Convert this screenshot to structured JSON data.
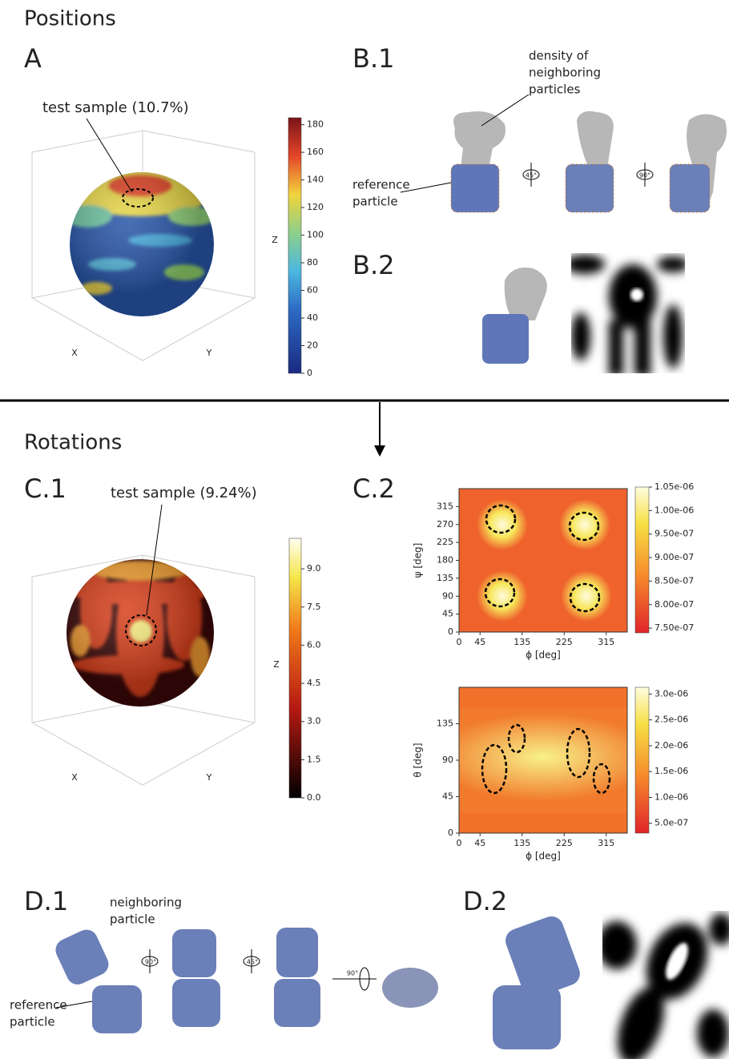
{
  "sections": {
    "positions": "Positions",
    "rotations": "Rotations"
  },
  "panel_A": {
    "label": "A",
    "annotation": "test sample (10.7%)",
    "axes": {
      "x": "X",
      "y": "Y",
      "z": "Z"
    },
    "colorbar": {
      "lim": [
        0,
        185
      ],
      "ticks": [
        0,
        20,
        40,
        60,
        80,
        100,
        120,
        140,
        160,
        180
      ]
    }
  },
  "panel_B1": {
    "label": "B.1",
    "density_label": [
      "density of",
      "neighboring",
      "particles"
    ],
    "reference_label": [
      "reference",
      "particle"
    ],
    "rotations": [
      "45°",
      "90°"
    ]
  },
  "panel_B2": {
    "label": "B.2"
  },
  "panel_C1": {
    "label": "C.1",
    "annotation": "test sample (9.24%)",
    "axes": {
      "x": "X",
      "y": "Y",
      "z": "Z"
    },
    "colorbar": {
      "lim": [
        0,
        10.2
      ],
      "ticks": [
        {
          "value": 0,
          "label": "0.0"
        },
        {
          "value": 1.5,
          "label": "1.5"
        },
        {
          "value": 3,
          "label": "3.0"
        },
        {
          "value": 4.5,
          "label": "4.5"
        },
        {
          "value": 6,
          "label": "6.0"
        },
        {
          "value": 7.5,
          "label": "7.5"
        },
        {
          "value": 9,
          "label": "9.0"
        }
      ]
    }
  },
  "panel_C2": {
    "label": "C.2",
    "plots": [
      {
        "xlabel": "ϕ [deg]",
        "ylabel": "ψ [deg]",
        "xlim": [
          0,
          360
        ],
        "xticks": [
          0,
          45,
          135,
          225,
          315
        ],
        "ylim": [
          0,
          360
        ],
        "yticks": [
          0,
          45,
          90,
          135,
          180,
          225,
          270,
          315
        ],
        "colorbar": {
          "lim": [
            7.4e-07,
            1.05e-06
          ],
          "ticks": [
            {
              "value": 7.5e-07,
              "label": "7.50e-07"
            },
            {
              "value": 8e-07,
              "label": "8.00e-07"
            },
            {
              "value": 8.5e-07,
              "label": "8.50e-07"
            },
            {
              "value": 9e-07,
              "label": "9.00e-07"
            },
            {
              "value": 9.5e-07,
              "label": "9.50e-07"
            },
            {
              "value": 1e-06,
              "label": "1.00e-06"
            },
            {
              "value": 1.05e-06,
              "label": "1.05e-06"
            }
          ]
        }
      },
      {
        "xlabel": "ϕ [deg]",
        "ylabel": "θ [deg]",
        "xlim": [
          0,
          360
        ],
        "xticks": [
          0,
          45,
          135,
          225,
          315
        ],
        "ylim": [
          0,
          180
        ],
        "yticks": [
          0,
          45,
          90,
          135
        ],
        "colorbar": {
          "lim": [
            3.1e-07,
            3.13e-06
          ],
          "ticks": [
            {
              "value": 5e-07,
              "label": "5.0e-07"
            },
            {
              "value": 1e-06,
              "label": "1.0e-06"
            },
            {
              "value": 1.5e-06,
              "label": "1.5e-06"
            },
            {
              "value": 2e-06,
              "label": "2.0e-06"
            },
            {
              "value": 2.5e-06,
              "label": "2.5e-06"
            },
            {
              "value": 3e-06,
              "label": "3.0e-06"
            }
          ]
        }
      }
    ]
  },
  "panel_D1": {
    "label": "D.1",
    "neighbor_label": [
      "neighboring",
      "particle"
    ],
    "reference_label": [
      "reference",
      "particle"
    ],
    "rotations": [
      "90°",
      "45°",
      "90°"
    ]
  },
  "panel_D2": {
    "label": "D.2"
  }
}
